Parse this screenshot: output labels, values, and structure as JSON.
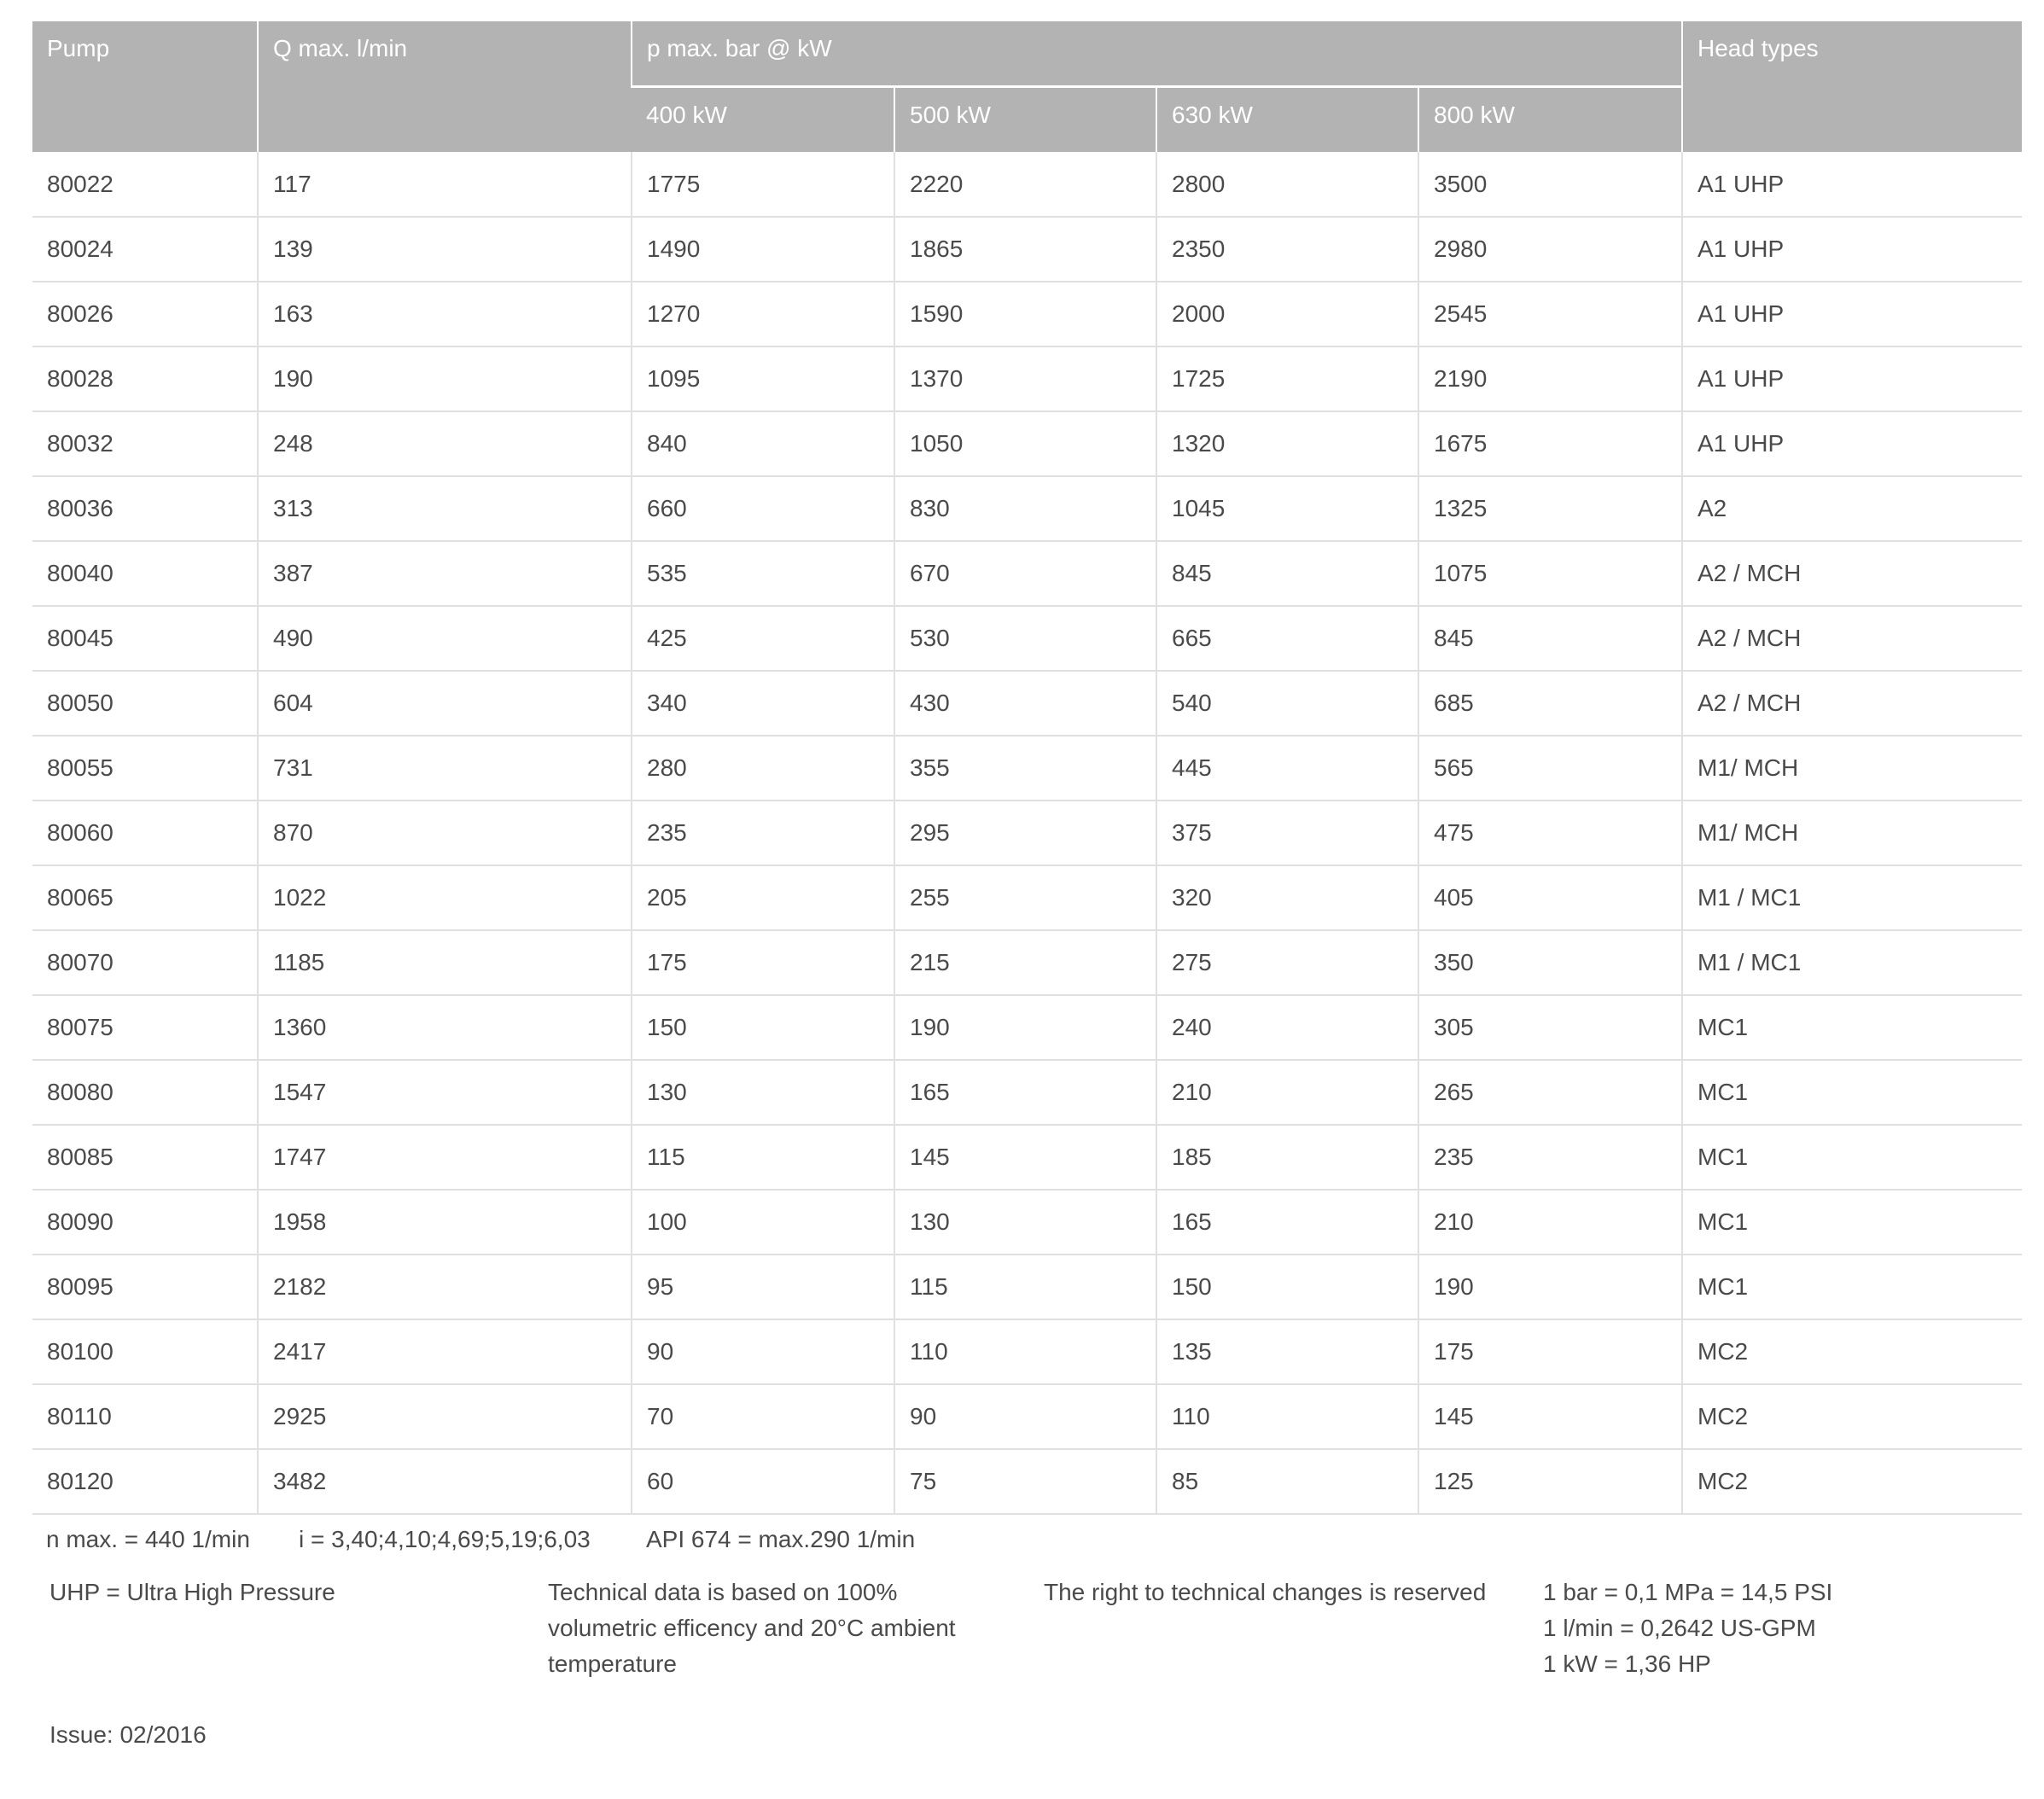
{
  "table": {
    "headers": {
      "pump": "Pump",
      "q_max": "Q max. l/min",
      "p_max": "p max. bar @ kW",
      "head_types": "Head types",
      "kw": [
        "400 kW",
        "500 kW",
        "630 kW",
        "800 kW"
      ]
    },
    "rows": [
      [
        "80022",
        "117",
        "1775",
        "2220",
        "2800",
        "3500",
        "A1 UHP"
      ],
      [
        "80024",
        "139",
        "1490",
        "1865",
        "2350",
        "2980",
        "A1 UHP"
      ],
      [
        "80026",
        "163",
        "1270",
        "1590",
        "2000",
        "2545",
        "A1 UHP"
      ],
      [
        "80028",
        "190",
        "1095",
        "1370",
        "1725",
        "2190",
        "A1 UHP"
      ],
      [
        "80032",
        "248",
        "840",
        "1050",
        "1320",
        "1675",
        "A1 UHP"
      ],
      [
        "80036",
        "313",
        "660",
        "830",
        "1045",
        "1325",
        "A2"
      ],
      [
        "80040",
        "387",
        "535",
        "670",
        "845",
        "1075",
        "A2 / MCH"
      ],
      [
        "80045",
        "490",
        "425",
        "530",
        "665",
        "845",
        "A2 / MCH"
      ],
      [
        "80050",
        "604",
        "340",
        "430",
        "540",
        "685",
        "A2 / MCH"
      ],
      [
        "80055",
        "731",
        "280",
        "355",
        "445",
        "565",
        "M1/ MCH"
      ],
      [
        "80060",
        "870",
        "235",
        "295",
        "375",
        "475",
        "M1/ MCH"
      ],
      [
        "80065",
        "1022",
        "205",
        "255",
        "320",
        "405",
        "M1 / MC1"
      ],
      [
        "80070",
        "1185",
        "175",
        "215",
        "275",
        "350",
        "M1 / MC1"
      ],
      [
        "80075",
        "1360",
        "150",
        "190",
        "240",
        "305",
        "MC1"
      ],
      [
        "80080",
        "1547",
        "130",
        "165",
        "210",
        "265",
        "MC1"
      ],
      [
        "80085",
        "1747",
        "115",
        "145",
        "185",
        "235",
        "MC1"
      ],
      [
        "80090",
        "1958",
        "100",
        "130",
        "165",
        "210",
        "MC1"
      ],
      [
        "80095",
        "2182",
        "95",
        "115",
        "150",
        "190",
        "MC1"
      ],
      [
        "80100",
        "2417",
        "90",
        "110",
        "135",
        "175",
        "MC2"
      ],
      [
        "80110",
        "2925",
        "70",
        "90",
        "110",
        "145",
        "MC2"
      ],
      [
        "80120",
        "3482",
        "60",
        "75",
        "85",
        "125",
        "MC2"
      ]
    ]
  },
  "footer": {
    "n_max": "n max. = 440 1/min",
    "ratio": "i = 3,40;4,10;4,69;5,19;6,03",
    "api": "API 674 = max.290 1/min",
    "uhp": "UHP = Ultra High Pressure",
    "technical_data": [
      "Technical data is based on 100%",
      "volumetric efficency and 20°C ambient",
      "temperature"
    ],
    "rights": "The right to technical changes is reserved",
    "conversions": [
      "1 bar = 0,1 MPa = 14,5 PSI",
      "1 l/min = 0,2642 US-GPM",
      "1 kW = 1,36 HP"
    ],
    "issue": "Issue: 02/2016"
  },
  "colors": {
    "header_bg": "#b3b3b3",
    "header_text": "#ffffff",
    "grid": "#e0e0e0",
    "text": "#4a4a4a"
  }
}
